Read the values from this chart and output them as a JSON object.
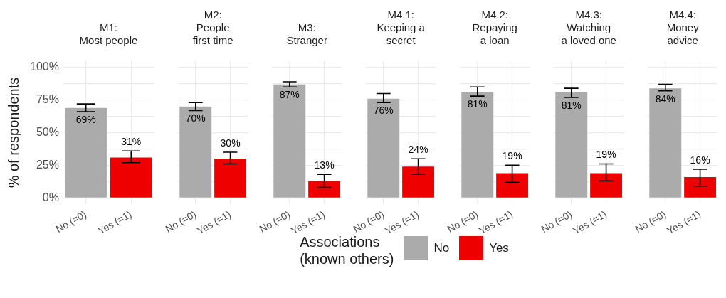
{
  "chart_data": [
    {
      "type": "bar",
      "title": "M1:\nMost people",
      "categories": [
        "No (=0)",
        "Yes (=1)"
      ],
      "ylabel": "% of respondents",
      "ylim": [
        -5,
        105
      ],
      "yticks": [
        {
          "value": 0,
          "label": "0%"
        },
        {
          "value": 12.5,
          "label": null
        },
        {
          "value": 25,
          "label": "25%"
        },
        {
          "value": 37.5,
          "label": null
        },
        {
          "value": 50,
          "label": "50%"
        },
        {
          "value": 62.5,
          "label": null
        },
        {
          "value": 75,
          "label": "75%"
        },
        {
          "value": 87.5,
          "label": null
        },
        {
          "value": 100,
          "label": "100%"
        }
      ],
      "grid": true,
      "legend": "bottom",
      "legend_title": "Associations\n(known others)",
      "series": [
        {
          "name": "No",
          "color": "#ababab",
          "values": [
            69,
            null
          ],
          "errors": [
            [
              66,
              72
            ],
            null
          ],
          "value_labels": [
            "69%",
            null
          ]
        },
        {
          "name": "Yes",
          "color": "#ee0000",
          "values": [
            null,
            31
          ],
          "errors": [
            null,
            [
              27,
              36
            ]
          ],
          "value_labels": [
            null,
            "31%"
          ]
        }
      ]
    },
    {
      "type": "bar",
      "title": "M2:\nPeople\nfirst time",
      "categories": [
        "No (=0)",
        "Yes (=1)"
      ],
      "ylim": [
        -5,
        105
      ],
      "yticks": [
        0,
        12.5,
        25,
        37.5,
        50,
        62.5,
        75,
        87.5,
        100
      ],
      "grid": true,
      "tick_labels": "x",
      "series": [
        {
          "color": "#ababab",
          "values": [
            70,
            null
          ],
          "errors": [
            [
              67,
              73
            ],
            null
          ],
          "value_labels": [
            "70%",
            null
          ]
        },
        {
          "color": "#ee0000",
          "values": [
            null,
            30
          ],
          "errors": [
            null,
            [
              26,
              35
            ]
          ],
          "value_labels": [
            null,
            "30%"
          ]
        }
      ]
    },
    {
      "type": "bar",
      "title": "M3:\nStranger",
      "categories": [
        "No (=0)",
        "Yes (=1)"
      ],
      "ylim": [
        -5,
        105
      ],
      "yticks": [
        0,
        12.5,
        25,
        37.5,
        50,
        62.5,
        75,
        87.5,
        100
      ],
      "grid": true,
      "tick_labels": "x",
      "series": [
        {
          "color": "#ababab",
          "values": [
            87,
            null
          ],
          "errors": [
            [
              85,
              89
            ],
            null
          ],
          "value_labels": [
            "87%",
            null
          ]
        },
        {
          "color": "#ee0000",
          "values": [
            null,
            13
          ],
          "errors": [
            null,
            [
              8,
              18
            ]
          ],
          "value_labels": [
            null,
            "13%"
          ]
        }
      ]
    },
    {
      "type": "bar",
      "title": "M4.1:\nKeeping a\nsecret",
      "categories": [
        "No (=0)",
        "Yes (=1)"
      ],
      "ylim": [
        -5,
        105
      ],
      "yticks": [
        0,
        12.5,
        25,
        37.5,
        50,
        62.5,
        75,
        87.5,
        100
      ],
      "grid": true,
      "tick_labels": "x",
      "series": [
        {
          "color": "#ababab",
          "values": [
            76,
            null
          ],
          "errors": [
            [
              73,
              80
            ],
            null
          ],
          "value_labels": [
            "76%",
            null
          ]
        },
        {
          "color": "#ee0000",
          "values": [
            null,
            24
          ],
          "errors": [
            null,
            [
              18,
              30
            ]
          ],
          "value_labels": [
            null,
            "24%"
          ]
        }
      ]
    },
    {
      "type": "bar",
      "title": "M4.2:\nRepaying\na loan",
      "categories": [
        "No (=0)",
        "Yes (=1)"
      ],
      "ylim": [
        -5,
        105
      ],
      "yticks": [
        0,
        12.5,
        25,
        37.5,
        50,
        62.5,
        75,
        87.5,
        100
      ],
      "grid": true,
      "tick_labels": "x",
      "series": [
        {
          "color": "#ababab",
          "values": [
            81,
            null
          ],
          "errors": [
            [
              78,
              85
            ],
            null
          ],
          "value_labels": [
            "81%",
            null
          ]
        },
        {
          "color": "#ee0000",
          "values": [
            null,
            19
          ],
          "errors": [
            null,
            [
              12,
              25
            ]
          ],
          "value_labels": [
            null,
            "19%"
          ]
        }
      ]
    },
    {
      "type": "bar",
      "title": "M4.3:\nWatching\na loved one",
      "categories": [
        "No (=0)",
        "Yes (=1)"
      ],
      "ylim": [
        -5,
        105
      ],
      "yticks": [
        0,
        12.5,
        25,
        37.5,
        50,
        62.5,
        75,
        87.5,
        100
      ],
      "grid": true,
      "tick_labels": "x",
      "series": [
        {
          "color": "#ababab",
          "values": [
            81,
            null
          ],
          "errors": [
            [
              77,
              84
            ],
            null
          ],
          "value_labels": [
            "81%",
            null
          ]
        },
        {
          "color": "#ee0000",
          "values": [
            null,
            19
          ],
          "errors": [
            null,
            [
              13,
              26
            ]
          ],
          "value_labels": [
            null,
            "19%"
          ]
        }
      ]
    },
    {
      "type": "bar",
      "title": "M4.4:\nMoney\nadvice",
      "categories": [
        "No (=0)",
        "Yes (=1)"
      ],
      "ylim": [
        -5,
        105
      ],
      "yticks": [
        0,
        12.5,
        25,
        37.5,
        50,
        62.5,
        75,
        87.5,
        100
      ],
      "grid": true,
      "tick_labels": "x",
      "series": [
        {
          "color": "#ababab",
          "values": [
            84,
            null
          ],
          "errors": [
            [
              82,
              87
            ],
            null
          ],
          "value_labels": [
            "84%",
            null
          ]
        },
        {
          "color": "#ee0000",
          "values": [
            null,
            16
          ],
          "errors": [
            null,
            [
              9,
              22
            ]
          ],
          "value_labels": [
            null,
            "16%"
          ]
        }
      ]
    }
  ]
}
